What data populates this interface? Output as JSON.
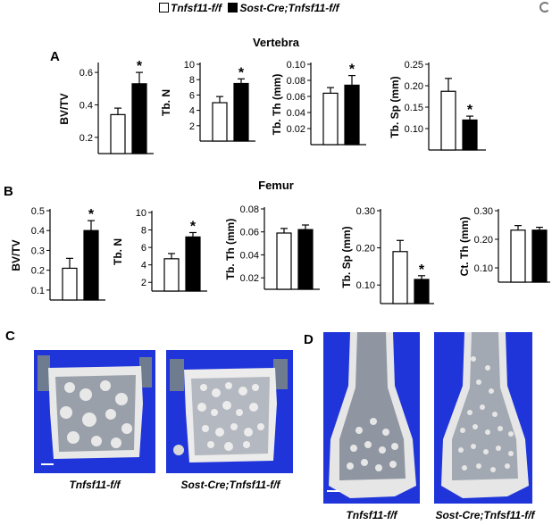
{
  "legend": {
    "series1": "Tnfsf11-f/f",
    "series2": "Sost-Cre;Tnfsf11-f/f"
  },
  "panels": {
    "A": {
      "letter": "A",
      "title": "Vertebra"
    },
    "B": {
      "letter": "B",
      "title": "Femur"
    },
    "C": {
      "letter": "C",
      "captions": [
        "Tnfsf11-f/f",
        "Sost-Cre;Tnfsf11-f/f"
      ]
    },
    "D": {
      "letter": "D",
      "captions": [
        "Tnfsf11-f/f",
        "Sost-Cre;Tnfsf11-f/f"
      ]
    }
  },
  "colors": {
    "control": "#ffffff",
    "mutant": "#000000",
    "microct_bg": "#1f35d9",
    "bone": "#ececec"
  },
  "chart_data": [
    {
      "type": "bar",
      "panel": "A",
      "ylabel": "BV/TV",
      "ylim": [
        0.1,
        0.65
      ],
      "ticks": [
        "0.2",
        "0.4",
        "0.6"
      ],
      "tickvals": [
        0.2,
        0.4,
        0.6
      ],
      "categories": [
        "Tnfsf11-f/f",
        "Sost-Cre;Tnfsf11-f/f"
      ],
      "values": [
        0.34,
        0.53
      ],
      "errors": [
        0.04,
        0.07
      ],
      "significance": [
        "",
        "*"
      ]
    },
    {
      "type": "bar",
      "panel": "A",
      "ylabel": "Tb. N",
      "ylim": [
        0,
        10
      ],
      "ticks": [
        "2",
        "4",
        "6",
        "8",
        "10"
      ],
      "tickvals": [
        2,
        4,
        6,
        8,
        10
      ],
      "categories": [
        "Tnfsf11-f/f",
        "Sost-Cre;Tnfsf11-f/f"
      ],
      "values": [
        5.0,
        7.5
      ],
      "errors": [
        0.8,
        0.6
      ],
      "significance": [
        "",
        "*"
      ]
    },
    {
      "type": "bar",
      "panel": "A",
      "ylabel": "Tb. Th (mm)",
      "ylim": [
        0,
        0.1
      ],
      "ticks": [
        "0.02",
        "0.04",
        "0.06",
        "0.08",
        "0.10"
      ],
      "tickvals": [
        0.02,
        0.04,
        0.06,
        0.08,
        0.1
      ],
      "categories": [
        "Tnfsf11-f/f",
        "Sost-Cre;Tnfsf11-f/f"
      ],
      "values": [
        0.064,
        0.074
      ],
      "errors": [
        0.007,
        0.012
      ],
      "significance": [
        "",
        "*"
      ]
    },
    {
      "type": "bar",
      "panel": "A",
      "ylabel": "Tb. Sp (mm)",
      "ylim": [
        0.05,
        0.25
      ],
      "ticks": [
        "0.10",
        "0.15",
        "0.20",
        "0.25"
      ],
      "tickvals": [
        0.1,
        0.15,
        0.2,
        0.25
      ],
      "categories": [
        "Tnfsf11-f/f",
        "Sost-Cre;Tnfsf11-f/f"
      ],
      "values": [
        0.187,
        0.12
      ],
      "errors": [
        0.03,
        0.009
      ],
      "significance": [
        "",
        "*"
      ]
    },
    {
      "type": "bar",
      "panel": "B",
      "ylabel": "BV/TV",
      "ylim": [
        0.05,
        0.5
      ],
      "ticks": [
        "0.1",
        "0.2",
        "0.3",
        "0.4",
        "0.5"
      ],
      "tickvals": [
        0.1,
        0.2,
        0.3,
        0.4,
        0.5
      ],
      "categories": [
        "Tnfsf11-f/f",
        "Sost-Cre;Tnfsf11-f/f"
      ],
      "values": [
        0.21,
        0.4
      ],
      "errors": [
        0.05,
        0.05
      ],
      "significance": [
        "",
        "*"
      ]
    },
    {
      "type": "bar",
      "panel": "B",
      "ylabel": "Tb. N",
      "ylim": [
        1,
        10
      ],
      "ticks": [
        "2",
        "4",
        "6",
        "8",
        "10"
      ],
      "tickvals": [
        2,
        4,
        6,
        8,
        10
      ],
      "categories": [
        "Tnfsf11-f/f",
        "Sost-Cre;Tnfsf11-f/f"
      ],
      "values": [
        4.7,
        7.2
      ],
      "errors": [
        0.6,
        0.5
      ],
      "significance": [
        "",
        "*"
      ]
    },
    {
      "type": "bar",
      "panel": "B",
      "ylabel": "Tb. Th (mm)",
      "ylim": [
        0.01,
        0.08
      ],
      "ticks": [
        "0.02",
        "0.04",
        "0.06",
        "0.08"
      ],
      "tickvals": [
        0.02,
        0.04,
        0.06,
        0.08
      ],
      "categories": [
        "Tnfsf11-f/f",
        "Sost-Cre;Tnfsf11-f/f"
      ],
      "values": [
        0.059,
        0.062
      ],
      "errors": [
        0.004,
        0.004
      ],
      "significance": [
        "",
        ""
      ]
    },
    {
      "type": "bar",
      "panel": "B",
      "ylabel": "Tb. Sp (mm)",
      "ylim": [
        0.05,
        0.3
      ],
      "ticks": [
        "0.10",
        "0.20",
        "0.30"
      ],
      "tickvals": [
        0.1,
        0.2,
        0.3
      ],
      "categories": [
        "Tnfsf11-f/f",
        "Sost-Cre;Tnfsf11-f/f"
      ],
      "values": [
        0.19,
        0.115
      ],
      "errors": [
        0.03,
        0.01
      ],
      "significance": [
        "",
        "*"
      ]
    },
    {
      "type": "bar",
      "panel": "B",
      "ylabel": "Ct. Th (mm)",
      "ylim": [
        0.05,
        0.3
      ],
      "ticks": [
        "0.10",
        "0.20",
        "0.30"
      ],
      "tickvals": [
        0.1,
        0.2,
        0.3
      ],
      "categories": [
        "Tnfsf11-f/f",
        "Sost-Cre;Tnfsf11-f/f"
      ],
      "values": [
        0.232,
        0.232
      ],
      "errors": [
        0.016,
        0.01
      ],
      "significance": [
        "",
        ""
      ]
    }
  ]
}
